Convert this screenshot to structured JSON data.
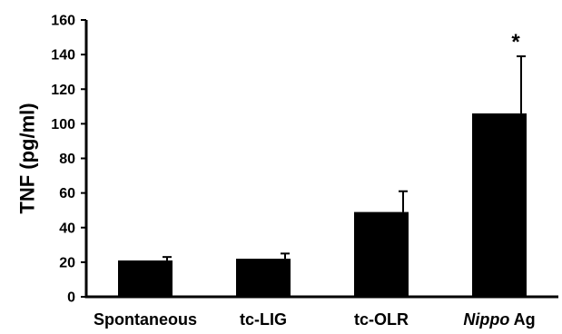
{
  "chart_data": {
    "type": "bar",
    "title": "",
    "xlabel": "",
    "ylabel": "TNF (pg/ml)",
    "ylim": [
      0,
      160
    ],
    "yticks": [
      0,
      20,
      40,
      60,
      80,
      100,
      120,
      140,
      160
    ],
    "grid": false,
    "bar_color": "#000000",
    "categories": [
      {
        "label": "Spontaneous",
        "italic_part": "",
        "rest": ""
      },
      {
        "label": "tc-LIG",
        "italic_part": "",
        "rest": ""
      },
      {
        "label": "tc-OLR",
        "italic_part": "",
        "rest": ""
      },
      {
        "label": "",
        "italic_part": "Nippo",
        "rest": " Ag"
      }
    ],
    "values": [
      21,
      22,
      49,
      106
    ],
    "errors": [
      2,
      3,
      12,
      33
    ],
    "annotations": [
      {
        "category_index": 3,
        "text": "*"
      }
    ]
  }
}
